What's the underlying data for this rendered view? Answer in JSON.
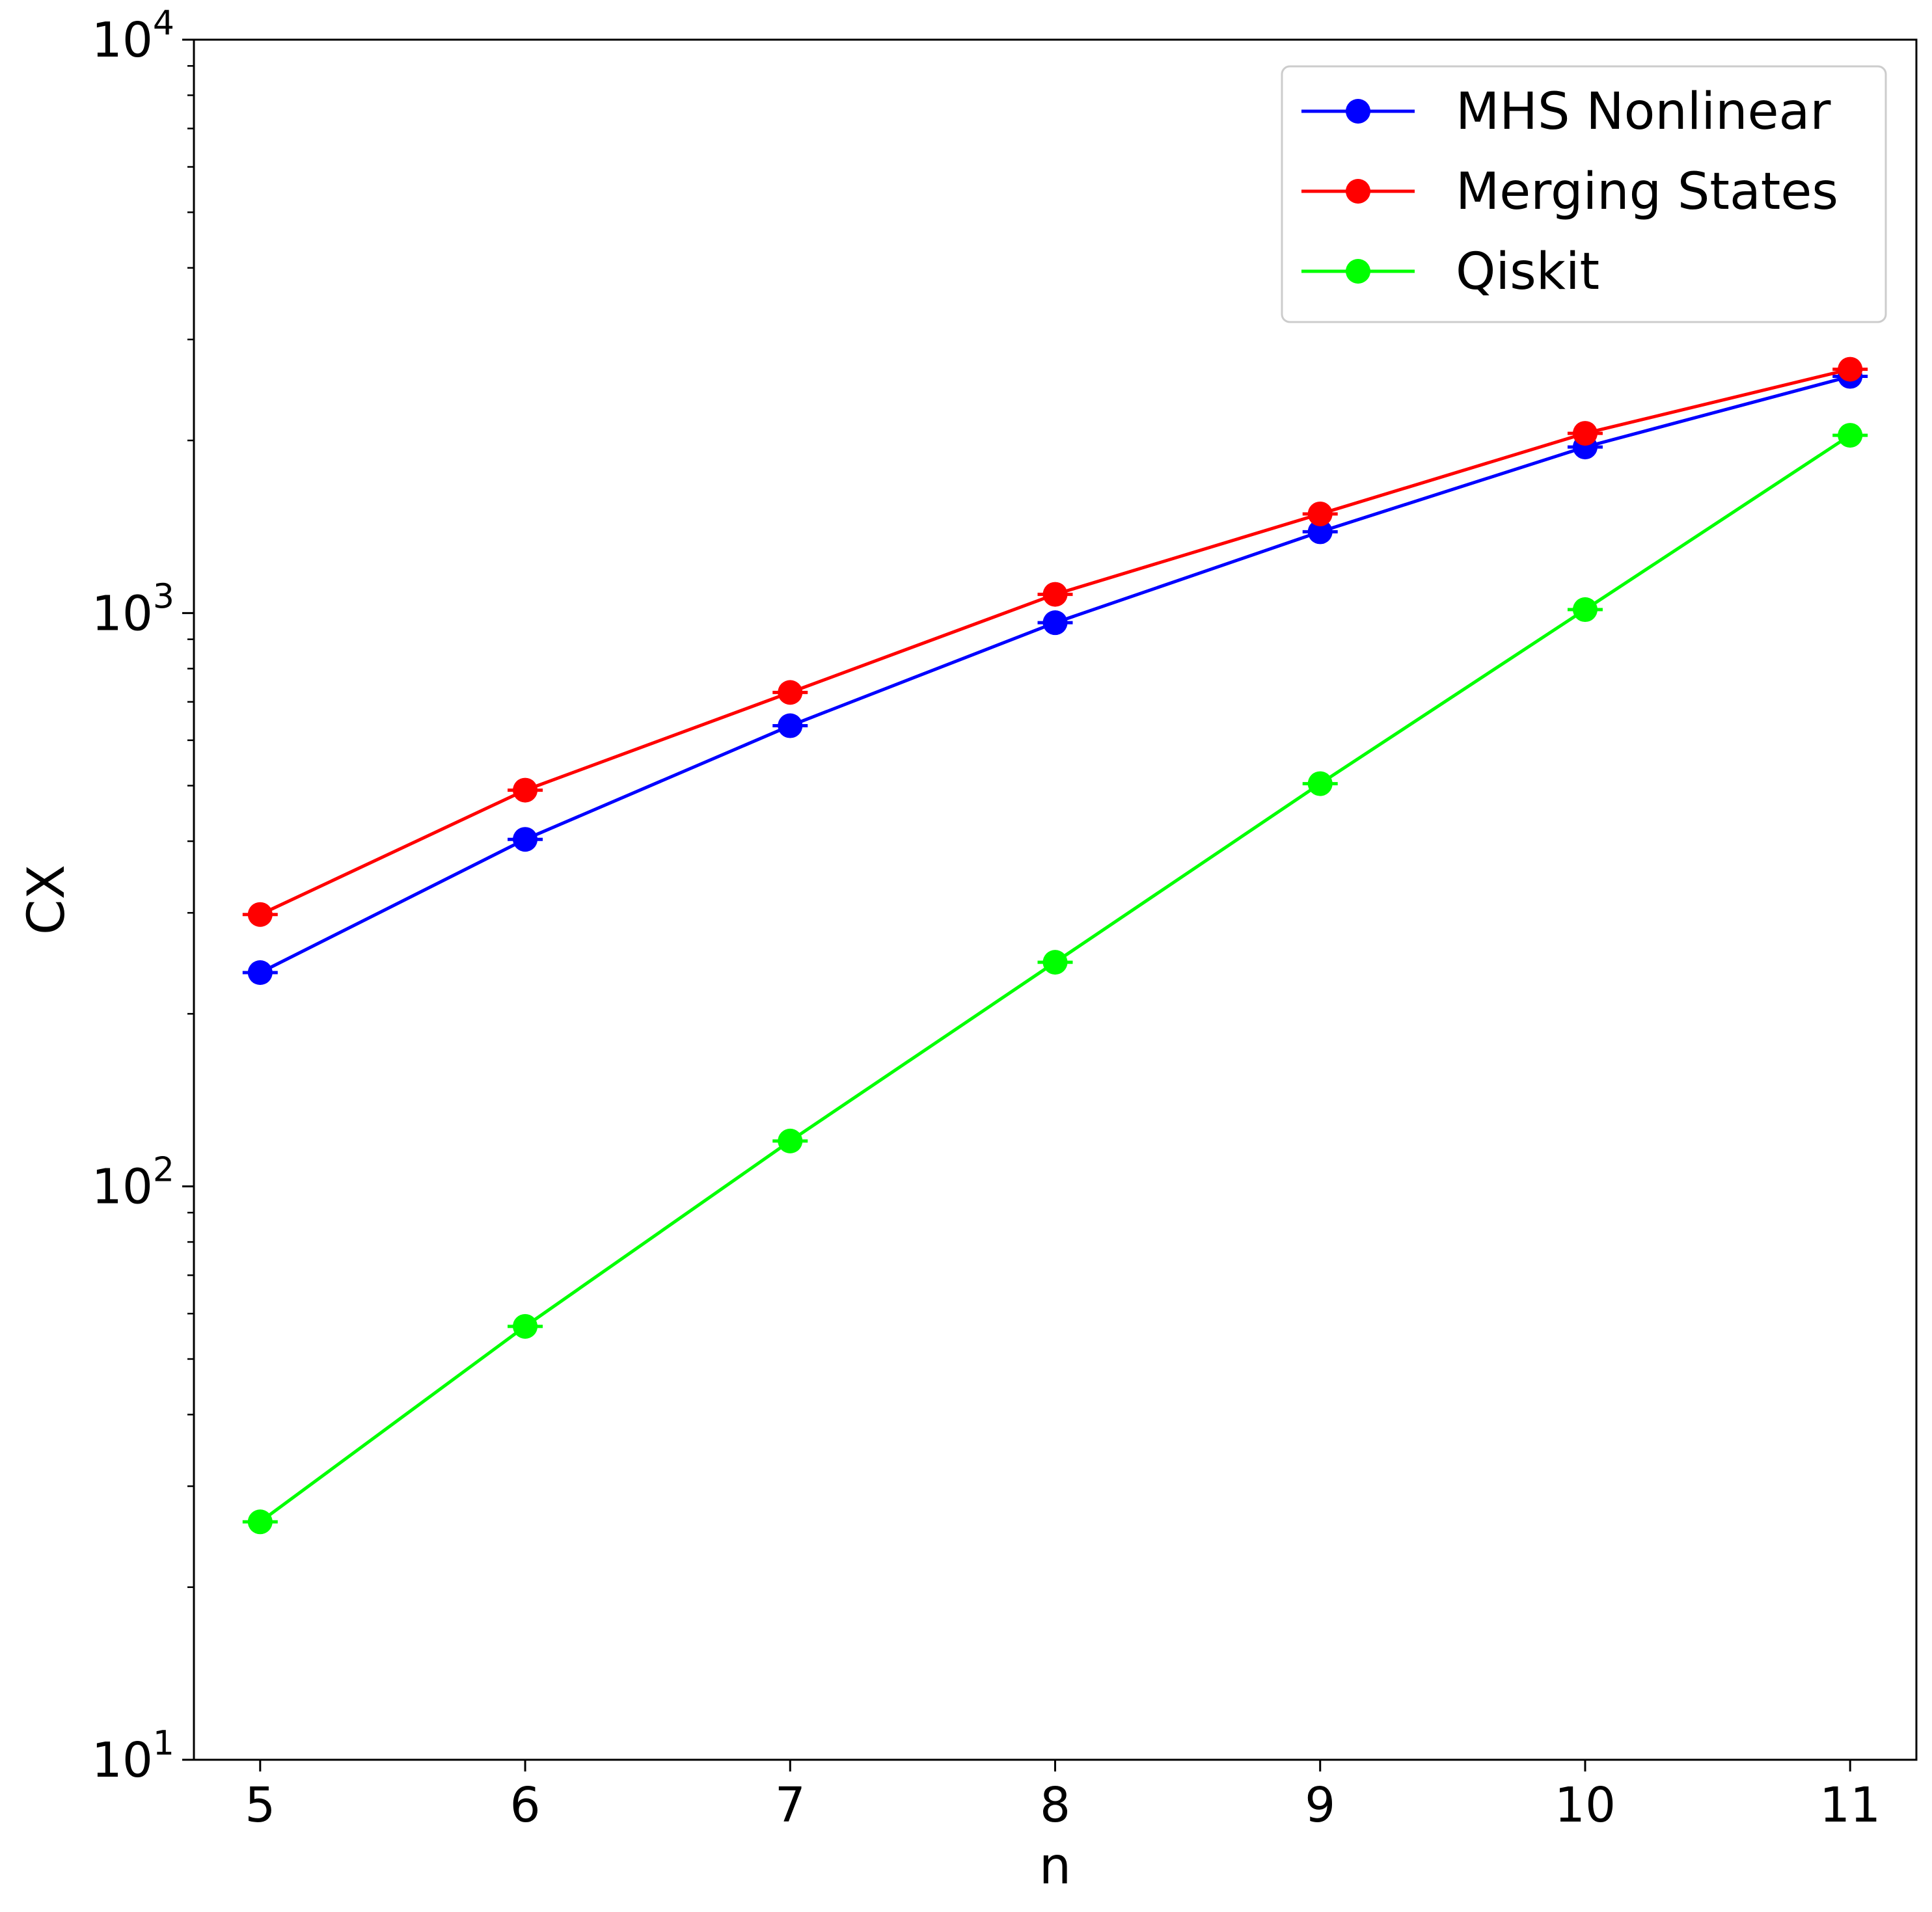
{
  "chart_data": {
    "type": "line",
    "xlabel": "n",
    "ylabel": "CX",
    "x": [
      5,
      6,
      7,
      8,
      9,
      10,
      11
    ],
    "xlim": [
      4.75,
      11.25
    ],
    "ylim": [
      10,
      10000
    ],
    "y_scale": "log",
    "x_ticks": [
      "5",
      "6",
      "7",
      "8",
      "9",
      "10",
      "11"
    ],
    "y_ticks": [
      {
        "value": 10,
        "base": "10",
        "exp": "1"
      },
      {
        "value": 100,
        "base": "10",
        "exp": "2"
      },
      {
        "value": 1000,
        "base": "10",
        "exp": "3"
      },
      {
        "value": 10000,
        "base": "10",
        "exp": "4"
      }
    ],
    "grid": false,
    "legend_position": "top-right",
    "series": [
      {
        "name": "MHS Nonlinear",
        "color": "#0000ff",
        "values": [
          236,
          403,
          636,
          962,
          1386,
          1948,
          2587
        ]
      },
      {
        "name": "Merging States",
        "color": "#ff0000",
        "values": [
          298,
          491,
          727,
          1078,
          1489,
          2058,
          2662
        ]
      },
      {
        "name": "Qiskit",
        "color": "#00ff00",
        "values": [
          26,
          57,
          120,
          246,
          504,
          1014,
          2042
        ]
      }
    ]
  }
}
